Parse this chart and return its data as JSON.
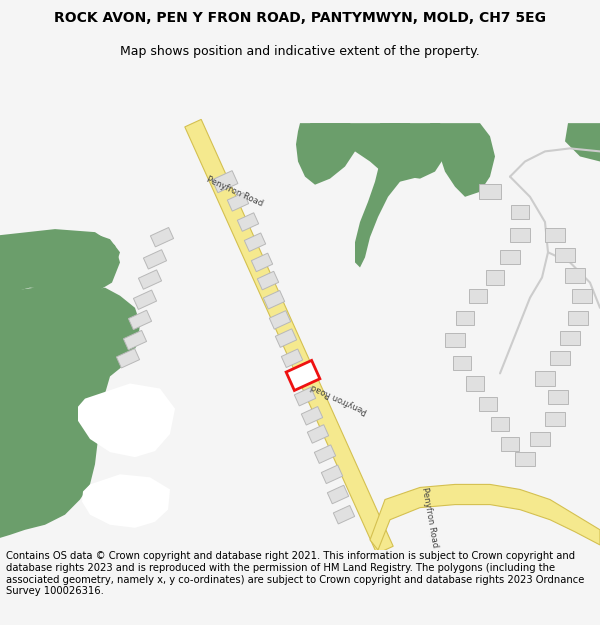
{
  "title": "ROCK AVON, PEN Y FRON ROAD, PANTYMWYN, MOLD, CH7 5EG",
  "subtitle": "Map shows position and indicative extent of the property.",
  "footer": "Contains OS data © Crown copyright and database right 2021. This information is subject to Crown copyright and database rights 2023 and is reproduced with the permission of HM Land Registry. The polygons (including the associated geometry, namely x, y co-ordinates) are subject to Crown copyright and database rights 2023 Ordnance Survey 100026316.",
  "bg_color": "#f5f5f5",
  "map_bg": "#ffffff",
  "green_color": "#6b9e6b",
  "road_fill": "#f5e98e",
  "road_edge": "#d4c050",
  "building_color": "#e0e0e0",
  "building_edge": "#b8b8b8",
  "path_color": "#cccccc",
  "path_edge": "#aaaaaa",
  "highlight_color": "#ee1111",
  "label_color": "#444444",
  "title_fontsize": 10,
  "subtitle_fontsize": 9,
  "footer_fontsize": 7.2
}
